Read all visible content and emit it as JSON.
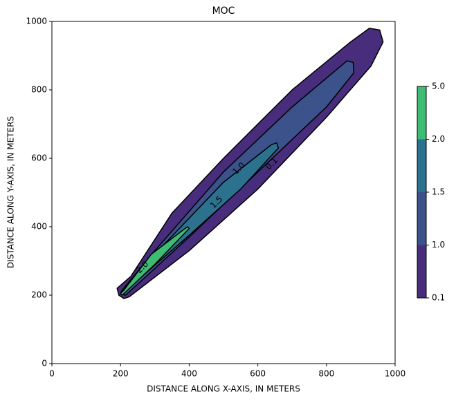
{
  "chart_data": {
    "type": "contour",
    "title": "MOC",
    "x_label": "DISTANCE ALONG X-AXIS, IN METERS",
    "y_label": "DISTANCE ALONG Y-AXIS, IN METERS",
    "xlim": [
      0,
      1000
    ],
    "ylim": [
      0,
      1000
    ],
    "xticks": [
      0,
      200,
      400,
      600,
      800,
      1000
    ],
    "yticks": [
      0,
      200,
      400,
      600,
      800,
      1000
    ],
    "levels": [
      0.1,
      {
        "value": 1,
        "label": "1.0"
      },
      1.5,
      {
        "value": 2,
        "label": "2.0"
      },
      {
        "value": 5,
        "label": "5.0"
      }
    ],
    "bands": [
      {
        "color": "#472d7b",
        "x": [
          190,
          195,
          210,
          225,
          400,
          600,
          800,
          930,
          965,
          955,
          925,
          870,
          700,
          500,
          350,
          230
        ],
        "y": [
          220,
          200,
          190,
          195,
          330,
          510,
          720,
          870,
          940,
          975,
          980,
          940,
          800,
          600,
          440,
          255
        ]
      },
      {
        "color": "#3b528b",
        "x": [
          200,
          215,
          400,
          600,
          800,
          880,
          878,
          860,
          700,
          500,
          300,
          205
        ],
        "y": [
          205,
          200,
          370,
          560,
          750,
          850,
          880,
          885,
          750,
          560,
          330,
          215
        ]
      },
      {
        "color": "#2c728e",
        "x": [
          205,
          400,
          550,
          660,
          655,
          640,
          500,
          300,
          203
        ],
        "y": [
          205,
          375,
          510,
          630,
          645,
          640,
          530,
          320,
          210
        ]
      },
      {
        "color": "#3dbc74",
        "x": [
          205,
          300,
          400,
          395,
          290,
          210,
          200
        ],
        "y": [
          200,
          290,
          395,
          400,
          320,
          215,
          205
        ]
      }
    ],
    "contour_labels": [
      {
        "text": "1.0",
        "x": 545,
        "y": 570
      },
      {
        "text": "0.1",
        "x": 641,
        "y": 584
      },
      {
        "text": "1.5",
        "x": 480,
        "y": 471
      },
      {
        "text": "2.0",
        "x": 264,
        "y": 281
      }
    ]
  }
}
